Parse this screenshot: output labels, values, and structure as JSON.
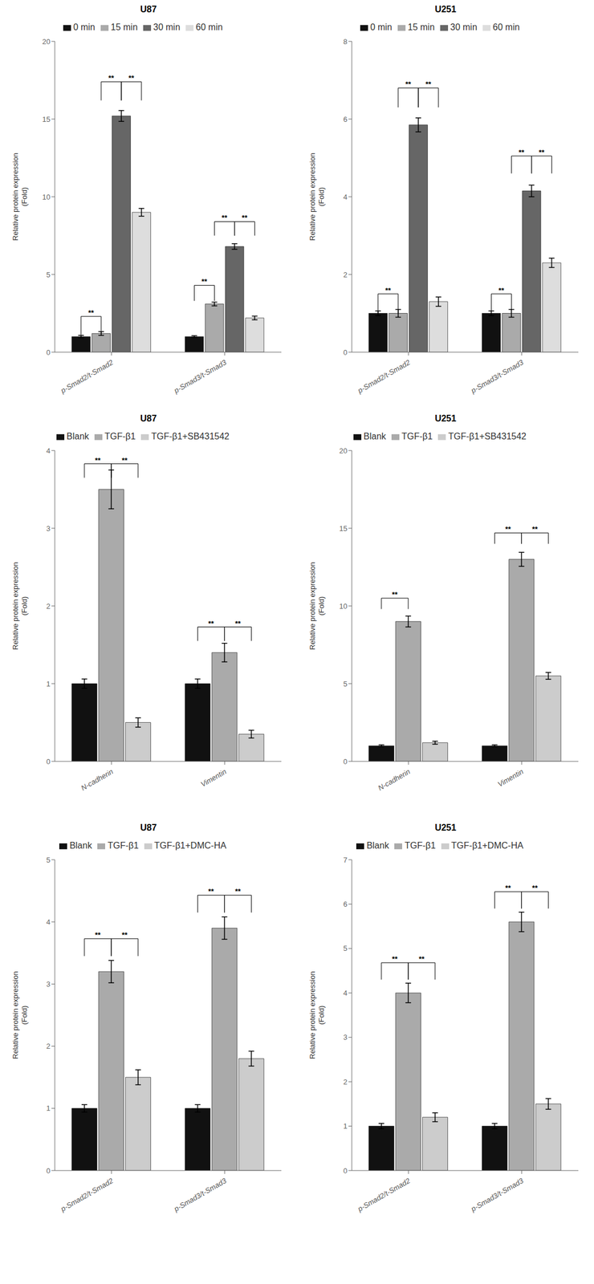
{
  "chart_data": [
    {
      "type": "bar",
      "title": "U87",
      "ylabel": "Relative protein expression\n(Fold)",
      "categories": [
        "p-Smad2/t-Smad2",
        "p-Smad3/t-Smad3"
      ],
      "series": [
        {
          "name": "0 min",
          "color": "#111111",
          "values": [
            1.0,
            1.0
          ],
          "errors": [
            0.08,
            0.06
          ]
        },
        {
          "name": "15 min",
          "color": "#aaaaaa",
          "values": [
            1.2,
            3.1
          ],
          "errors": [
            0.12,
            0.12
          ]
        },
        {
          "name": "30 min",
          "color": "#666666",
          "values": [
            15.2,
            6.8
          ],
          "errors": [
            0.35,
            0.18
          ]
        },
        {
          "name": "60 min",
          "color": "#dddddd",
          "values": [
            9.0,
            2.2
          ],
          "errors": [
            0.25,
            0.12
          ]
        }
      ],
      "ylim": [
        0,
        20
      ],
      "yticks": [
        0,
        5,
        10,
        15,
        20
      ],
      "legend": "top",
      "annotations": [
        {
          "text": "**",
          "category": "p-Smad2/t-Smad2",
          "from": "0 min",
          "to": "15 min",
          "y": 1.1,
          "height": 1.2
        },
        {
          "text": "**",
          "category": "p-Smad2/t-Smad2",
          "from": "15 min",
          "to": "30 min",
          "y": 16.2,
          "height": 1.2
        },
        {
          "text": "**",
          "category": "p-Smad2/t-Smad2",
          "from": "30 min",
          "to": "60 min",
          "y": 16.2,
          "height": 1.2
        },
        {
          "text": "**",
          "category": "p-Smad3/t-Smad3",
          "from": "0 min",
          "to": "15 min",
          "y": 3.3,
          "height": 1.0
        },
        {
          "text": "**",
          "category": "p-Smad3/t-Smad3",
          "from": "15 min",
          "to": "30 min",
          "y": 7.5,
          "height": 0.9
        },
        {
          "text": "**",
          "category": "p-Smad3/t-Smad3",
          "from": "30 min",
          "to": "60 min",
          "y": 7.5,
          "height": 0.9
        }
      ]
    },
    {
      "type": "bar",
      "title": "U251",
      "ylabel": "Relative protein expression\n(Fold)",
      "categories": [
        "p-Smad2/t-Smad2",
        "p-Smad3/t-Smad3"
      ],
      "series": [
        {
          "name": "0 min",
          "color": "#111111",
          "values": [
            1.0,
            1.0
          ],
          "errors": [
            0.06,
            0.06
          ]
        },
        {
          "name": "15 min",
          "color": "#aaaaaa",
          "values": [
            1.0,
            1.0
          ],
          "errors": [
            0.1,
            0.1
          ]
        },
        {
          "name": "30 min",
          "color": "#666666",
          "values": [
            5.85,
            4.15
          ],
          "errors": [
            0.18,
            0.15
          ]
        },
        {
          "name": "60 min",
          "color": "#dddddd",
          "values": [
            1.3,
            2.3
          ],
          "errors": [
            0.12,
            0.12
          ]
        }
      ],
      "ylim": [
        0,
        8
      ],
      "yticks": [
        0,
        2,
        4,
        6,
        8
      ],
      "legend": "top",
      "annotations": [
        {
          "text": "**",
          "category": "p-Smad2/t-Smad2",
          "from": "0 min",
          "to": "15 min",
          "y": 1.0,
          "height": 0.5
        },
        {
          "text": "**",
          "category": "p-Smad2/t-Smad2",
          "from": "15 min",
          "to": "30 min",
          "y": 6.3,
          "height": 0.5
        },
        {
          "text": "**",
          "category": "p-Smad2/t-Smad2",
          "from": "30 min",
          "to": "60 min",
          "y": 6.3,
          "height": 0.5
        },
        {
          "text": "**",
          "category": "p-Smad3/t-Smad3",
          "from": "0 min",
          "to": "15 min",
          "y": 1.0,
          "height": 0.5
        },
        {
          "text": "**",
          "category": "p-Smad3/t-Smad3",
          "from": "15 min",
          "to": "30 min",
          "y": 4.6,
          "height": 0.45
        },
        {
          "text": "**",
          "category": "p-Smad3/t-Smad3",
          "from": "30 min",
          "to": "60 min",
          "y": 4.6,
          "height": 0.45
        }
      ]
    },
    {
      "type": "bar",
      "title": "U87",
      "ylabel": "Relative protein expression\n(Fold)",
      "categories": [
        "N-cadherin",
        "Vimentin"
      ],
      "series": [
        {
          "name": "Blank",
          "color": "#111111",
          "values": [
            1.0,
            1.0
          ],
          "errors": [
            0.06,
            0.06
          ]
        },
        {
          "name": "TGF-β1",
          "color": "#aaaaaa",
          "values": [
            3.5,
            1.4
          ],
          "errors": [
            0.25,
            0.12
          ]
        },
        {
          "name": "TGF-β1+SB431542",
          "color": "#cccccc",
          "values": [
            0.5,
            0.35
          ],
          "errors": [
            0.06,
            0.05
          ]
        }
      ],
      "ylim": [
        0,
        4
      ],
      "yticks": [
        0,
        1,
        2,
        3,
        4
      ],
      "legend": "top",
      "annotations": [
        {
          "text": "**",
          "category": "N-cadherin",
          "from": "Blank",
          "to": "TGF-β1",
          "y": 3.65,
          "height": 0.18
        },
        {
          "text": "**",
          "category": "N-cadherin",
          "from": "TGF-β1",
          "to": "TGF-β1+SB431542",
          "y": 3.65,
          "height": 0.18
        },
        {
          "text": "**",
          "category": "Vimentin",
          "from": "Blank",
          "to": "TGF-β1",
          "y": 1.55,
          "height": 0.18
        },
        {
          "text": "**",
          "category": "Vimentin",
          "from": "TGF-β1",
          "to": "TGF-β1+SB431542",
          "y": 1.55,
          "height": 0.18
        }
      ]
    },
    {
      "type": "bar",
      "title": "U251",
      "ylabel": "Relative protein expression\n(Fold)",
      "categories": [
        "N-cadherin",
        "Vimentin"
      ],
      "series": [
        {
          "name": "Blank",
          "color": "#111111",
          "values": [
            1.0,
            1.0
          ],
          "errors": [
            0.06,
            0.06
          ]
        },
        {
          "name": "TGF-β1",
          "color": "#aaaaaa",
          "values": [
            9.0,
            13.0
          ],
          "errors": [
            0.35,
            0.45
          ]
        },
        {
          "name": "TGF-β1+SB431542",
          "color": "#cccccc",
          "values": [
            1.2,
            5.5
          ],
          "errors": [
            0.1,
            0.22
          ]
        }
      ],
      "ylim": [
        0,
        20
      ],
      "yticks": [
        0,
        5,
        10,
        15,
        20
      ],
      "legend": "top",
      "annotations": [
        {
          "text": "**",
          "category": "N-cadherin",
          "from": "Blank",
          "to": "TGF-β1",
          "y": 9.8,
          "height": 0.7
        },
        {
          "text": "**",
          "category": "Vimentin",
          "from": "TGF-β1",
          "to": "TGF-β1+SB431542",
          "y": 14.0,
          "height": 0.7
        },
        {
          "text": "**",
          "category": "Vimentin",
          "from": "Blank",
          "to": "TGF-β1",
          "y": 14.0,
          "height": 0.7
        }
      ]
    },
    {
      "type": "bar",
      "title": "U87",
      "ylabel": "Relative protein expression\n(Fold)",
      "categories": [
        "p-Smad2/t-Smad2",
        "p-Smad3/t-Smad3"
      ],
      "series": [
        {
          "name": "Blank",
          "color": "#111111",
          "values": [
            1.0,
            1.0
          ],
          "errors": [
            0.06,
            0.06
          ]
        },
        {
          "name": "TGF-β1",
          "color": "#aaaaaa",
          "values": [
            3.2,
            3.9
          ],
          "errors": [
            0.18,
            0.18
          ]
        },
        {
          "name": "TGF-β1+DMC-HA",
          "color": "#cccccc",
          "values": [
            1.5,
            1.8
          ],
          "errors": [
            0.12,
            0.12
          ]
        }
      ],
      "ylim": [
        0,
        5
      ],
      "yticks": [
        0,
        1,
        2,
        3,
        4,
        5
      ],
      "legend": "top",
      "annotations": [
        {
          "text": "**",
          "category": "p-Smad2/t-Smad2",
          "from": "Blank",
          "to": "TGF-β1",
          "y": 3.45,
          "height": 0.28
        },
        {
          "text": "**",
          "category": "p-Smad2/t-Smad2",
          "from": "TGF-β1",
          "to": "TGF-β1+DMC-HA",
          "y": 3.45,
          "height": 0.28
        },
        {
          "text": "**",
          "category": "p-Smad3/t-Smad3",
          "from": "Blank",
          "to": "TGF-β1",
          "y": 4.15,
          "height": 0.28
        },
        {
          "text": "**",
          "category": "p-Smad3/t-Smad3",
          "from": "TGF-β1",
          "to": "TGF-β1+DMC-HA",
          "y": 4.15,
          "height": 0.28
        }
      ]
    },
    {
      "type": "bar",
      "title": "U251",
      "ylabel": "Relative protein expression\n(Fold)",
      "categories": [
        "p-Smad2/t-Smad2",
        "p-Smad3/t-Smad3"
      ],
      "series": [
        {
          "name": "Blank",
          "color": "#111111",
          "values": [
            1.0,
            1.0
          ],
          "errors": [
            0.06,
            0.06
          ]
        },
        {
          "name": "TGF-β1",
          "color": "#aaaaaa",
          "values": [
            4.0,
            5.6
          ],
          "errors": [
            0.22,
            0.22
          ]
        },
        {
          "name": "TGF-β1+DMC-HA",
          "color": "#cccccc",
          "values": [
            1.2,
            1.5
          ],
          "errors": [
            0.1,
            0.12
          ]
        }
      ],
      "ylim": [
        0,
        7
      ],
      "yticks": [
        0,
        1,
        2,
        3,
        4,
        5,
        6,
        7
      ],
      "legend": "top",
      "annotations": [
        {
          "text": "**",
          "category": "p-Smad2/t-Smad2",
          "from": "Blank",
          "to": "TGF-β1",
          "y": 4.3,
          "height": 0.38
        },
        {
          "text": "**",
          "category": "p-Smad2/t-Smad2",
          "from": "TGF-β1",
          "to": "TGF-β1+DMC-HA",
          "y": 4.3,
          "height": 0.38
        },
        {
          "text": "**",
          "category": "p-Smad3/t-Smad3",
          "from": "Blank",
          "to": "TGF-β1",
          "y": 5.9,
          "height": 0.38
        },
        {
          "text": "**",
          "category": "p-Smad3/t-Smad3",
          "from": "TGF-β1",
          "to": "TGF-β1+DMC-HA",
          "y": 5.9,
          "height": 0.38
        }
      ]
    }
  ]
}
